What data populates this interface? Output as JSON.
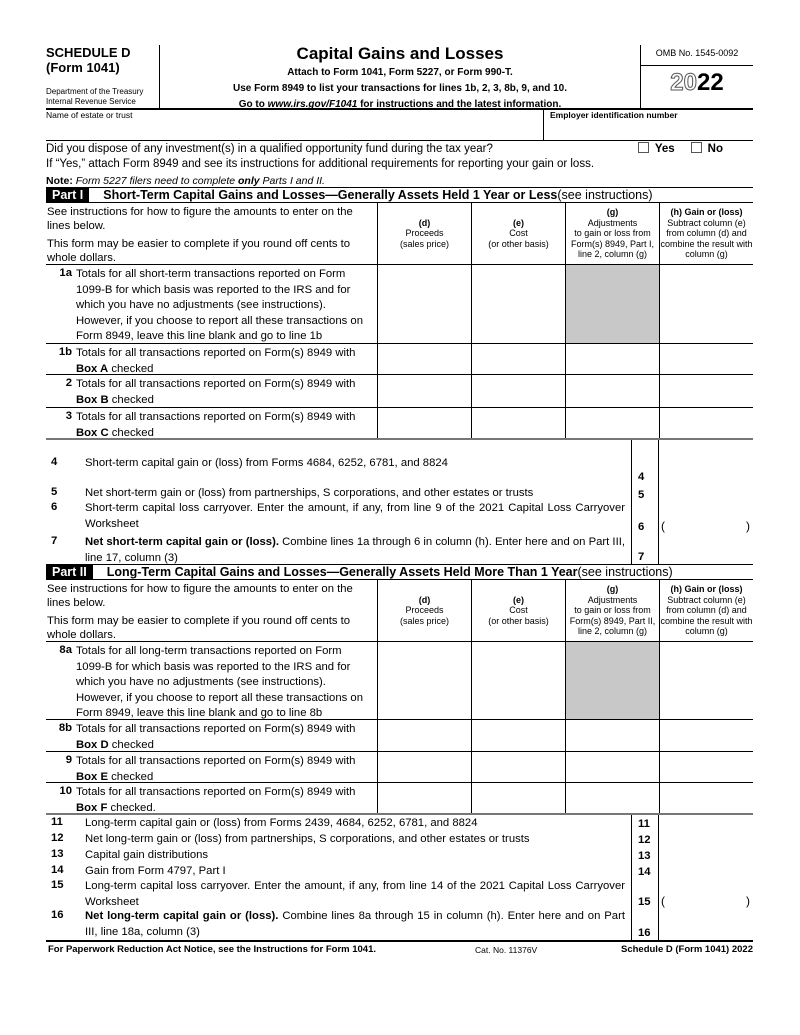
{
  "header": {
    "schedule": "SCHEDULE D",
    "form": "(Form 1041)",
    "dept1": "Department of the Treasury",
    "dept2": "Internal Revenue Service",
    "title": "Capital Gains and Losses",
    "sub1": "Attach to Form 1041, Form 5227, or Form 990-T.",
    "sub2": "Use Form 8949 to list your transactions for lines 1b, 2, 3, 8b, 9, and 10.",
    "sub3_pre": "Go to ",
    "sub3_url": "www.irs.gov/F1041",
    "sub3_post": " for instructions and the latest information.",
    "omb": "OMB No. 1545-0092",
    "year_outline": "20",
    "year_bold": "22"
  },
  "identity": {
    "name_label": "Name of estate or trust",
    "name_value": "",
    "ein_label": "Employer identification number",
    "ein_value": ""
  },
  "question": {
    "text": "Did you dispose of any investment(s) in a qualified opportunity fund during the tax year?",
    "yes": "Yes",
    "no": "No",
    "yes_checked": false,
    "no_checked": false,
    "followup": "If “Yes,” attach Form 8949 and see its instructions for additional requirements for reporting your gain or loss."
  },
  "note": {
    "label": "Note:",
    "pre": " Form 5227 filers need to complete ",
    "bold": "only",
    "post": " Parts I and II."
  },
  "part1": {
    "tag": "Part I",
    "title": "Short-Term Capital Gains and Losses—Generally Assets Held 1 Year or Less",
    "title_suffix": " (see instructions)",
    "intro1": "See instructions for how to figure the amounts to enter on the lines below.",
    "intro2": "This form may be easier to complete if you round off cents to whole dollars.",
    "columns": [
      {
        "letter": "(d)",
        "text": "Proceeds\n(sales price)"
      },
      {
        "letter": "(e)",
        "text": "Cost\n(or other basis)"
      },
      {
        "letter": "(g)",
        "text": "Adjustments\nto gain or loss from\nForm(s) 8949, Part I,\nline 2, column (g)"
      },
      {
        "letter": "(h) Gain or (loss)",
        "text": "Subtract column (e)\nfrom column (d) and\ncombine the result with\ncolumn (g)"
      }
    ],
    "rows": [
      {
        "num": "1a",
        "text": "Totals for all short-term transactions reported on Form 1099-B for which basis was reported to the IRS and for which you have no adjustments (see instructions). However, if you choose to report all these transactions on Form 8949, leave this line blank and go to line 1b",
        "shaded_g": true
      },
      {
        "num": "1b",
        "text": "Totals for all transactions reported on Form(s) 8949 with",
        "bold": "Box A",
        "tail": " checked"
      },
      {
        "num": "2",
        "text": "Totals for all transactions reported on Form(s) 8949 with",
        "bold": "Box B",
        "tail": " checked"
      },
      {
        "num": "3",
        "text": "Totals for all transactions reported on Form(s) 8949 with",
        "bold": "Box C",
        "tail": " checked"
      }
    ],
    "lines": [
      {
        "num": "4",
        "text": "Short-term capital gain or (loss) from Forms 4684, 6252, 6781, and 8824"
      },
      {
        "num": "5",
        "text": "Net short-term gain or (loss) from partnerships, S corporations, and other estates or trusts"
      },
      {
        "num": "6",
        "text": "Short-term capital loss carryover. Enter the amount, if any, from line 9 of the 2021 Capital Loss Carryover Worksheet",
        "paren": true
      },
      {
        "num": "7",
        "bold": "Net short-term capital gain or (loss).",
        "text": " Combine lines 1a through 6 in column (h). Enter here and on Part III, line 17, column (3)"
      }
    ]
  },
  "part2": {
    "tag": "Part II",
    "title": "Long-Term Capital Gains and Losses—Generally Assets Held More Than 1 Year",
    "title_suffix": " (see instructions)",
    "intro1": "See instructions for how to figure the amounts to enter on the lines below.",
    "intro2": "This form may be easier to complete if you round off cents to whole dollars.",
    "columns": [
      {
        "letter": "(d)",
        "text": "Proceeds\n(sales price)"
      },
      {
        "letter": "(e)",
        "text": "Cost\n(or other basis)"
      },
      {
        "letter": "(g)",
        "text": "Adjustments\nto gain or loss from\nForm(s) 8949, Part II,\nline 2, column (g)"
      },
      {
        "letter": "(h) Gain or (loss)",
        "text": "Subtract column (e)\nfrom column (d) and\ncombine the result with\ncolumn (g)"
      }
    ],
    "rows": [
      {
        "num": "8a",
        "text": "Totals for all long-term transactions reported on Form 1099-B for which basis was reported to the IRS and for which you have no adjustments (see instructions). However, if you choose to report all these transactions on Form 8949, leave this line blank and go to line 8b",
        "shaded_g": true
      },
      {
        "num": "8b",
        "text": "Totals for all transactions reported on Form(s) 8949 with",
        "bold": "Box D",
        "tail": " checked"
      },
      {
        "num": "9",
        "text": "Totals for all transactions reported on Form(s) 8949 with",
        "bold": "Box E",
        "tail": " checked"
      },
      {
        "num": "10",
        "text": "Totals for all transactions reported on Form(s) 8949 with",
        "bold": "Box F",
        "tail": " checked."
      }
    ],
    "lines": [
      {
        "num": "11",
        "text": "Long-term capital gain or (loss) from Forms 2439, 4684, 6252, 6781, and 8824"
      },
      {
        "num": "12",
        "text": "Net long-term gain or (loss) from partnerships, S corporations, and other estates or trusts"
      },
      {
        "num": "13",
        "text": "Capital gain distributions"
      },
      {
        "num": "14",
        "text": "Gain from Form 4797, Part I"
      },
      {
        "num": "15",
        "text": "Long-term capital loss carryover. Enter the amount, if any, from line 14 of the 2021 Capital Loss Carryover Worksheet",
        "paren": true
      },
      {
        "num": "16",
        "bold": "Net long-term capital gain or (loss).",
        "text": " Combine lines 8a through 15 in column (h). Enter here and on Part III, line 18a, column (3)"
      }
    ]
  },
  "footer": {
    "left": "For Paperwork Reduction Act Notice, see the Instructions for Form 1041.",
    "cat": "Cat. No. 11376V",
    "right": "Schedule D (Form 1041) 2022"
  }
}
